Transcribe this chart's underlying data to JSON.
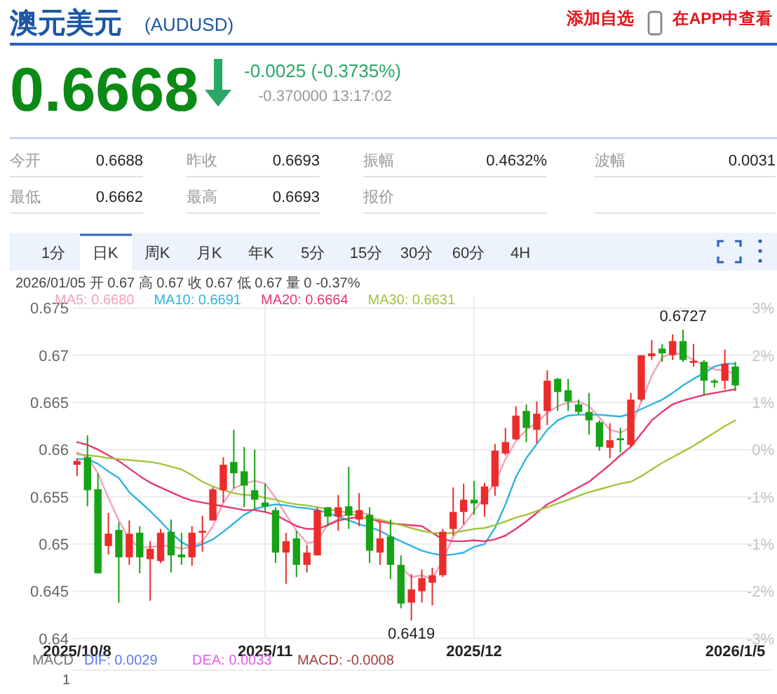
{
  "chart_data": {
    "type": "candlestick",
    "title": "澳元美元",
    "subtitle": "(AUDUSD)",
    "categories": [
      "2025/10/8",
      null,
      null,
      null,
      null,
      null,
      null,
      null,
      null,
      null,
      null,
      null,
      null,
      null,
      null,
      null,
      null,
      null,
      "2025/11",
      null,
      null,
      null,
      null,
      null,
      null,
      null,
      null,
      null,
      null,
      null,
      null,
      null,
      null,
      null,
      null,
      null,
      null,
      null,
      "2025/12",
      null,
      null,
      null,
      null,
      null,
      null,
      null,
      null,
      null,
      null,
      null,
      null,
      null,
      null,
      null,
      null,
      null,
      null,
      null,
      null,
      null,
      null,
      null,
      null,
      "2026/1/5"
    ],
    "ohlc": [
      [
        0.6584,
        0.6591,
        0.6572,
        0.6588
      ],
      [
        0.6592,
        0.6615,
        0.654,
        0.6557
      ],
      [
        0.6558,
        0.6575,
        0.6469,
        0.6469
      ],
      [
        0.6498,
        0.6533,
        0.6489,
        0.6511
      ],
      [
        0.6515,
        0.6523,
        0.6438,
        0.6486
      ],
      [
        0.6486,
        0.6525,
        0.6478,
        0.6511
      ],
      [
        0.6512,
        0.6519,
        0.6469,
        0.6486
      ],
      [
        0.6484,
        0.6503,
        0.644,
        0.6495
      ],
      [
        0.6482,
        0.6516,
        0.648,
        0.6512
      ],
      [
        0.6513,
        0.6526,
        0.647,
        0.6488
      ],
      [
        0.6489,
        0.6512,
        0.6478,
        0.6486
      ],
      [
        0.6486,
        0.6519,
        0.6477,
        0.6512
      ],
      [
        0.6512,
        0.653,
        0.6492,
        0.6514
      ],
      [
        0.6525,
        0.656,
        0.6525,
        0.6558
      ],
      [
        0.6557,
        0.6592,
        0.6544,
        0.6584
      ],
      [
        0.6587,
        0.6621,
        0.6559,
        0.6575
      ],
      [
        0.6577,
        0.6603,
        0.6539,
        0.6562
      ],
      [
        0.6557,
        0.66,
        0.6537,
        0.6547
      ],
      [
        0.6544,
        0.6564,
        0.6534,
        0.654
      ],
      [
        0.6536,
        0.6539,
        0.648,
        0.6491
      ],
      [
        0.6491,
        0.6512,
        0.6458,
        0.6503
      ],
      [
        0.6506,
        0.6514,
        0.6465,
        0.6478
      ],
      [
        0.6478,
        0.6499,
        0.647,
        0.6491
      ],
      [
        0.6488,
        0.6539,
        0.6488,
        0.6536
      ],
      [
        0.6539,
        0.6539,
        0.6519,
        0.6529
      ],
      [
        0.6529,
        0.6552,
        0.6514,
        0.6539
      ],
      [
        0.654,
        0.6582,
        0.6516,
        0.653
      ],
      [
        0.6526,
        0.6554,
        0.6519,
        0.6536
      ],
      [
        0.6531,
        0.6539,
        0.648,
        0.6493
      ],
      [
        0.6491,
        0.6523,
        0.6478,
        0.6506
      ],
      [
        0.6508,
        0.6526,
        0.6463,
        0.6478
      ],
      [
        0.6478,
        0.6488,
        0.6432,
        0.6437
      ],
      [
        0.6438,
        0.6468,
        0.6419,
        0.6452
      ],
      [
        0.645,
        0.6473,
        0.6438,
        0.6464
      ],
      [
        0.6459,
        0.6475,
        0.6435,
        0.6467
      ],
      [
        0.6467,
        0.6516,
        0.6465,
        0.6513
      ],
      [
        0.6516,
        0.656,
        0.6509,
        0.6534
      ],
      [
        0.6534,
        0.6564,
        0.6521,
        0.6547
      ],
      [
        0.6547,
        0.6567,
        0.6531,
        0.6543
      ],
      [
        0.6542,
        0.6565,
        0.6529,
        0.6561
      ],
      [
        0.6561,
        0.6606,
        0.6551,
        0.6599
      ],
      [
        0.6596,
        0.6623,
        0.6594,
        0.6608
      ],
      [
        0.6611,
        0.6646,
        0.661,
        0.6636
      ],
      [
        0.6641,
        0.6648,
        0.6608,
        0.6623
      ],
      [
        0.6621,
        0.6651,
        0.6607,
        0.6638
      ],
      [
        0.6641,
        0.6684,
        0.6626,
        0.6673
      ],
      [
        0.6675,
        0.6676,
        0.6641,
        0.6661
      ],
      [
        0.6663,
        0.6675,
        0.6641,
        0.6651
      ],
      [
        0.6648,
        0.6653,
        0.6637,
        0.664
      ],
      [
        0.664,
        0.666,
        0.6616,
        0.6631
      ],
      [
        0.6629,
        0.6631,
        0.6599,
        0.6603
      ],
      [
        0.6602,
        0.6628,
        0.6591,
        0.661
      ],
      [
        0.6612,
        0.6623,
        0.6597,
        0.661
      ],
      [
        0.6605,
        0.666,
        0.6603,
        0.6653
      ],
      [
        0.6653,
        0.67,
        0.6651,
        0.67
      ],
      [
        0.6699,
        0.6716,
        0.6695,
        0.6702
      ],
      [
        0.6707,
        0.6712,
        0.6693,
        0.6702
      ],
      [
        0.67,
        0.6722,
        0.6695,
        0.6715
      ],
      [
        0.6715,
        0.6727,
        0.6693,
        0.6695
      ],
      [
        0.6692,
        0.6712,
        0.6688,
        0.6694
      ],
      [
        0.6693,
        0.6695,
        0.6658,
        0.6673
      ],
      [
        0.6673,
        0.6675,
        0.6666,
        0.6671
      ],
      [
        0.6673,
        0.6706,
        0.6664,
        0.6691
      ],
      [
        0.6688,
        0.6693,
        0.6662,
        0.6668
      ]
    ],
    "colors": [
      "#ec2c2c",
      "#16a316",
      "#16a316",
      "#ec2c2c",
      "#16a316",
      "#ec2c2c",
      "#16a316",
      "#ec2c2c",
      "#ec2c2c",
      "#16a316",
      "#16a316",
      "#ec2c2c",
      "#ec2c2c",
      "#ec2c2c",
      "#ec2c2c",
      "#16a316",
      "#16a316",
      "#16a316",
      "#16a316",
      "#16a316",
      "#ec2c2c",
      "#16a316",
      "#ec2c2c",
      "#ec2c2c",
      "#16a316",
      "#ec2c2c",
      "#16a316",
      "#ec2c2c",
      "#16a316",
      "#ec2c2c",
      "#16a316",
      "#16a316",
      "#ec2c2c",
      "#ec2c2c",
      "#ec2c2c",
      "#ec2c2c",
      "#ec2c2c",
      "#ec2c2c",
      "#16a316",
      "#ec2c2c",
      "#ec2c2c",
      "#ec2c2c",
      "#ec2c2c",
      "#16a316",
      "#ec2c2c",
      "#ec2c2c",
      "#16a316",
      "#16a316",
      "#16a316",
      "#16a316",
      "#16a316",
      "#ec2c2c",
      "#16a316",
      "#ec2c2c",
      "#ec2c2c",
      "#ec2c2c",
      "#16a316",
      "#ec2c2c",
      "#16a316",
      "#ec2c2c",
      "#16a316",
      "#16a316",
      "#ec2c2c",
      "#16a316"
    ],
    "series": [
      {
        "type": "line",
        "name": "MA5: 0.6680",
        "color": "#f5a0b8",
        "values": [
          0.6597,
          0.6592,
          0.6575,
          0.6549,
          0.6525,
          0.6505,
          0.6496,
          0.6497,
          0.6498,
          0.6498,
          0.6495,
          0.6497,
          0.6503,
          0.6519,
          0.6544,
          0.6559,
          0.6564,
          0.6567,
          0.6564,
          0.6549,
          0.6531,
          0.6514,
          0.6501,
          0.6503,
          0.6521,
          0.6526,
          0.6534,
          0.6534,
          0.6531,
          0.6521,
          null,
          0.6475,
          0.6465,
          0.6467,
          0.6463,
          0.6483,
          0.6508,
          0.652,
          0.6535,
          0.655,
          0.6565,
          0.659,
          0.6609,
          0.6621,
          0.6629,
          0.6639,
          0.6646,
          0.665,
          0.6651,
          0.6646,
          0.6634,
          0.6621,
          0.6618,
          0.6624,
          0.6651,
          0.6678,
          0.6698,
          0.6702,
          0.6701,
          0.6695,
          0.669,
          0.6685,
          0.6684,
          0.668
        ]
      },
      {
        "type": "line",
        "name": "MA10: 0.6691",
        "color": "#2cb4e2",
        "values": [
          0.659,
          0.659,
          0.6585,
          0.6577,
          0.657,
          0.6555,
          0.6545,
          0.6535,
          0.6524,
          0.6512,
          0.6502,
          0.6496,
          0.65,
          0.6505,
          0.6513,
          0.6522,
          0.6531,
          0.6537,
          0.654,
          0.6542,
          0.6541,
          0.6539,
          0.6538,
          0.6536,
          0.6533,
          0.6529,
          0.6525,
          0.6521,
          0.6518,
          0.6514,
          0.6508,
          0.6503,
          0.6498,
          0.6493,
          0.649,
          0.6488,
          0.6489,
          0.6491,
          0.6497,
          0.65,
          0.6517,
          0.6542,
          0.6571,
          0.6591,
          0.6606,
          0.6621,
          0.6631,
          0.6636,
          0.6637,
          0.6637,
          0.6637,
          0.6636,
          0.6635,
          0.6638,
          0.6643,
          0.6648,
          0.6653,
          0.666,
          0.6668,
          0.6675,
          0.6681,
          0.6688,
          0.6691,
          0.6691
        ]
      },
      {
        "type": "line",
        "name": "MA20: 0.6664",
        "color": "#e8386e",
        "values": [
          0.6608,
          0.6605,
          0.66,
          0.6594,
          0.6588,
          0.658,
          0.6572,
          0.6565,
          0.656,
          0.6555,
          0.655,
          0.6546,
          0.6544,
          0.6542,
          0.654,
          0.6538,
          0.6536,
          0.6536,
          0.6534,
          0.6531,
          0.6525,
          0.6519,
          0.6516,
          0.6516,
          0.652,
          0.6525,
          0.6527,
          0.6529,
          0.6527,
          0.6524,
          0.6522,
          0.6521,
          0.652,
          0.6519,
          0.6512,
          0.6505,
          0.6503,
          0.6503,
          0.6504,
          0.6503,
          0.6505,
          0.6509,
          0.6516,
          0.6524,
          0.6533,
          0.6542,
          0.6548,
          0.6554,
          0.656,
          0.6566,
          0.6575,
          0.6584,
          0.6594,
          0.6603,
          0.6617,
          0.6631,
          0.664,
          0.6648,
          0.6652,
          0.6655,
          0.6658,
          0.666,
          0.6662,
          0.6664
        ]
      },
      {
        "type": "line",
        "name": "MA30: 0.6631",
        "color": "#a2c53c",
        "values": [
          0.6595,
          0.6594,
          0.6593,
          0.6591,
          0.659,
          0.6589,
          0.6588,
          0.6587,
          0.6585,
          0.6582,
          0.6579,
          0.6573,
          0.6566,
          0.6561,
          0.6557,
          0.6554,
          0.6552,
          0.6552,
          0.6549,
          0.6547,
          0.6544,
          0.6542,
          0.6541,
          0.6539,
          0.6537,
          0.6535,
          0.6533,
          0.6529,
          0.6527,
          0.6526,
          0.6523,
          0.652,
          0.6517,
          0.6514,
          0.6512,
          0.6511,
          0.6512,
          0.6514,
          0.6516,
          0.6517,
          0.652,
          0.6524,
          0.6528,
          0.6531,
          0.6535,
          0.6539,
          0.6543,
          0.6547,
          0.6551,
          0.6555,
          0.6558,
          0.6561,
          0.6564,
          0.6566,
          0.6572,
          0.6579,
          0.6586,
          0.6592,
          0.6598,
          0.6604,
          0.6611,
          0.6618,
          0.6625,
          0.6631
        ]
      }
    ],
    "ylim": [
      0.64,
      0.675
    ],
    "yticks": [
      0.64,
      0.645,
      0.65,
      0.655,
      0.66,
      0.665,
      0.67,
      0.675
    ],
    "grid": true,
    "legend": "top left",
    "line_style": "solid",
    "annotations": [
      "添加自选",
      "在APP中查看",
      "0.6668",
      "-0.0025 (-0.3735%)",
      "-0.370000 13:17:02",
      "今开",
      "0.6688",
      "昨收",
      "0.6693",
      "振幅",
      "0.4632%",
      "波幅",
      "0.0031",
      "最低",
      "0.6662",
      "最高",
      "0.6693",
      "报价",
      "1分",
      "日K",
      "周K",
      "月K",
      "年K",
      "5分",
      "15分",
      "30分",
      "60分",
      "4H",
      "2026/01/05 开 0.67 高 0.67 收 0.67 低 0.67 量 0 -0.37%",
      "MACD",
      "DIF: 0.0029",
      "DEA: 0.0033",
      "MACD: -0.0008",
      "1",
      "0.6727",
      "0.6419",
      "3%",
      "2%",
      "1%",
      "0%",
      "-1%",
      "-1%",
      "-2%",
      "-3%"
    ]
  }
}
